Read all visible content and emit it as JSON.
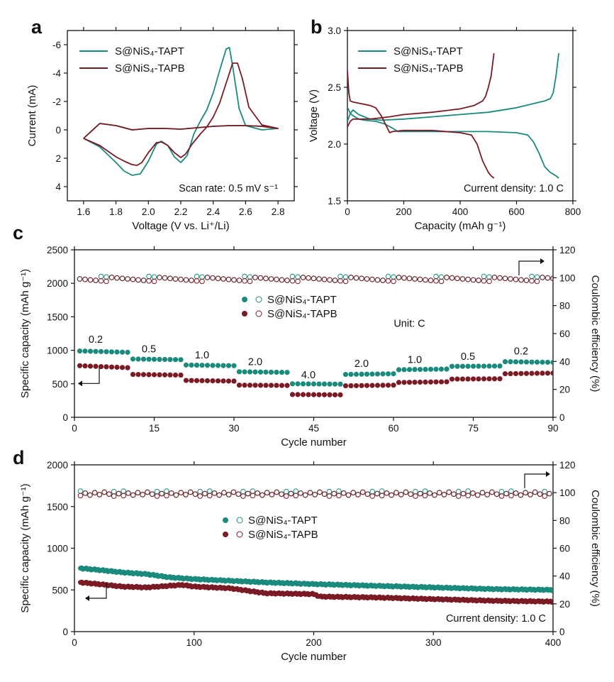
{
  "colors": {
    "tapt": "#1a8a7c",
    "tapb": "#7a1a24",
    "axis": "#111111"
  },
  "chart_data": [
    {
      "id": "a",
      "type": "line",
      "panel_label": "a",
      "xlabel": "Voltage (V vs. Li⁺/Li)",
      "ylabel": "Current (mA)",
      "xlim": [
        1.5,
        2.9
      ],
      "ylim": [
        5,
        -7
      ],
      "y_inverted": true,
      "xticks": [
        1.6,
        1.8,
        2.0,
        2.2,
        2.4,
        2.6,
        2.8
      ],
      "xtick_labels": [
        "1.6",
        "1.8",
        "2.0",
        "2.2",
        "2.4",
        "2.6",
        "2.8"
      ],
      "yticks": [
        -6,
        -4,
        -2,
        0,
        2,
        4
      ],
      "ytick_labels": [
        "-6",
        "-4",
        "-2",
        "0",
        "2",
        "4"
      ],
      "annotation": "Scan rate: 0.5 mV s⁻¹",
      "legend_position": "top-left",
      "series": [
        {
          "name": "S@NiS₄-TAPT",
          "color_key": "tapt",
          "x": [
            1.6,
            1.7,
            1.8,
            1.85,
            1.9,
            1.95,
            2.0,
            2.05,
            2.08,
            2.12,
            2.16,
            2.2,
            2.24,
            2.28,
            2.32,
            2.36,
            2.4,
            2.44,
            2.48,
            2.5,
            2.52,
            2.56,
            2.6,
            2.7,
            2.8,
            2.7,
            2.6,
            2.5,
            2.4,
            2.3,
            2.2,
            2.1,
            2.0,
            1.9,
            1.8,
            1.7,
            1.6
          ],
          "y": [
            0.6,
            1.2,
            2.3,
            2.9,
            3.2,
            3.1,
            2.2,
            1.0,
            0.8,
            1.1,
            1.9,
            2.3,
            1.8,
            0.3,
            -0.6,
            -1.4,
            -2.6,
            -4.2,
            -5.7,
            -5.8,
            -4.5,
            -1.5,
            -0.3,
            0.0,
            -0.1,
            -0.25,
            -0.3,
            -0.3,
            -0.25,
            -0.15,
            -0.05,
            -0.1,
            -0.1,
            0.0,
            -0.3,
            -0.45,
            0.6
          ]
        },
        {
          "name": "S@NiS₄-TAPB",
          "color_key": "tapb",
          "x": [
            1.6,
            1.7,
            1.8,
            1.85,
            1.9,
            1.93,
            1.96,
            2.0,
            2.05,
            2.08,
            2.12,
            2.16,
            2.2,
            2.23,
            2.27,
            2.32,
            2.36,
            2.4,
            2.44,
            2.48,
            2.52,
            2.55,
            2.58,
            2.62,
            2.7,
            2.8,
            2.7,
            2.6,
            2.5,
            2.4,
            2.3,
            2.2,
            2.1,
            2.0,
            1.9,
            1.8,
            1.7,
            1.6
          ],
          "y": [
            0.6,
            1.1,
            1.9,
            2.2,
            2.45,
            2.5,
            2.3,
            1.6,
            0.9,
            0.85,
            1.1,
            1.6,
            1.95,
            1.7,
            1.0,
            0.3,
            -0.2,
            -0.9,
            -1.9,
            -3.3,
            -4.7,
            -4.7,
            -3.6,
            -1.6,
            -0.35,
            -0.1,
            -0.25,
            -0.3,
            -0.3,
            -0.25,
            -0.15,
            -0.05,
            -0.1,
            -0.1,
            0.0,
            -0.3,
            -0.45,
            0.6
          ]
        }
      ]
    },
    {
      "id": "b",
      "type": "line",
      "panel_label": "b",
      "xlabel": "Capacity (mAh g⁻¹)",
      "ylabel": "Voltage (V)",
      "xlim": [
        0,
        800
      ],
      "ylim": [
        1.5,
        3.0
      ],
      "xticks": [
        0,
        200,
        400,
        600,
        800
      ],
      "xtick_labels": [
        "0",
        "200",
        "400",
        "600",
        "800"
      ],
      "yticks": [
        1.5,
        2.0,
        2.5,
        3.0
      ],
      "ytick_labels": [
        "1.5",
        "2.0",
        "2.5",
        "3.0"
      ],
      "annotation": "Current density: 1.0 C",
      "legend_position": "top-left",
      "series": [
        {
          "name": "S@NiS₄-TAPT",
          "color_key": "tapt",
          "segment": "discharge",
          "x": [
            0,
            5,
            10,
            20,
            40,
            60,
            100,
            130,
            160,
            180,
            200,
            300,
            400,
            500,
            600,
            640,
            660,
            680,
            700,
            720,
            740,
            750
          ],
          "y": [
            2.32,
            2.3,
            2.27,
            2.25,
            2.22,
            2.21,
            2.2,
            2.18,
            2.14,
            2.11,
            2.11,
            2.11,
            2.11,
            2.11,
            2.1,
            2.08,
            2.02,
            1.92,
            1.8,
            1.75,
            1.72,
            1.7
          ]
        },
        {
          "name": "S@NiS₄-TAPT",
          "color_key": "tapt",
          "segment": "charge",
          "x": [
            0,
            10,
            20,
            40,
            80,
            120,
            200,
            300,
            400,
            500,
            600,
            650,
            700,
            720,
            730,
            740,
            745,
            750
          ],
          "y": [
            2.2,
            2.27,
            2.3,
            2.26,
            2.22,
            2.21,
            2.22,
            2.24,
            2.26,
            2.28,
            2.32,
            2.35,
            2.38,
            2.4,
            2.45,
            2.6,
            2.7,
            2.8
          ]
        },
        {
          "name": "S@NiS₄-TAPB",
          "color_key": "tapb",
          "segment": "discharge",
          "x": [
            0,
            5,
            10,
            20,
            40,
            80,
            100,
            120,
            140,
            150,
            160,
            200,
            300,
            400,
            440,
            460,
            480,
            500,
            510,
            520
          ],
          "y": [
            2.65,
            2.45,
            2.38,
            2.37,
            2.36,
            2.34,
            2.32,
            2.25,
            2.15,
            2.1,
            2.11,
            2.12,
            2.12,
            2.1,
            2.08,
            2.0,
            1.85,
            1.75,
            1.72,
            1.7
          ]
        },
        {
          "name": "S@NiS₄-TAPB",
          "color_key": "tapb",
          "segment": "charge",
          "x": [
            0,
            10,
            20,
            40,
            80,
            150,
            200,
            300,
            400,
            450,
            480,
            490,
            500,
            510,
            515,
            520
          ],
          "y": [
            2.15,
            2.2,
            2.22,
            2.22,
            2.22,
            2.24,
            2.26,
            2.28,
            2.31,
            2.34,
            2.38,
            2.42,
            2.5,
            2.6,
            2.7,
            2.8
          ]
        }
      ]
    },
    {
      "id": "c",
      "type": "scatter",
      "panel_label": "c",
      "xlabel": "Cycle number",
      "ylabel": "Specific capacity (mAh g⁻¹)",
      "y2label": "Coulombic efficiency (%)",
      "xlim": [
        0,
        90
      ],
      "ylim": [
        0,
        2500
      ],
      "y2lim": [
        0,
        120
      ],
      "xticks": [
        0,
        15,
        30,
        45,
        60,
        75,
        90
      ],
      "xtick_labels": [
        "0",
        "15",
        "30",
        "45",
        "60",
        "75",
        "90"
      ],
      "yticks": [
        0,
        500,
        1000,
        1500,
        2000,
        2500
      ],
      "ytick_labels": [
        "0",
        "500",
        "1000",
        "1500",
        "2000",
        "2500"
      ],
      "y2ticks": [
        0,
        20,
        40,
        60,
        80,
        100,
        120
      ],
      "y2tick_labels": [
        "0",
        "20",
        "40",
        "60",
        "80",
        "100",
        "120"
      ],
      "unit_note": "Unit: C",
      "legend_position": "center",
      "rate_labels": [
        {
          "text": "0.2",
          "x": 4,
          "y": 1110
        },
        {
          "text": "0.5",
          "x": 14,
          "y": 970
        },
        {
          "text": "1.0",
          "x": 24,
          "y": 880
        },
        {
          "text": "2.0",
          "x": 34,
          "y": 780
        },
        {
          "text": "4.0",
          "x": 44,
          "y": 580
        },
        {
          "text": "2.0",
          "x": 54,
          "y": 750
        },
        {
          "text": "1.0",
          "x": 64,
          "y": 810
        },
        {
          "text": "0.5",
          "x": 74,
          "y": 860
        },
        {
          "text": "0.2",
          "x": 84,
          "y": 940
        }
      ],
      "series": [
        {
          "name": "S@NiS₄-TAPT",
          "color_key": "tapt",
          "axis": "left",
          "marker": "filled",
          "segments": [
            {
              "from": 1,
              "to": 10,
              "start": 990,
              "end": 970
            },
            {
              "from": 11,
              "to": 20,
              "start": 870,
              "end": 860
            },
            {
              "from": 21,
              "to": 30,
              "start": 780,
              "end": 770
            },
            {
              "from": 31,
              "to": 40,
              "start": 680,
              "end": 670
            },
            {
              "from": 41,
              "to": 50,
              "start": 500,
              "end": 495
            },
            {
              "from": 51,
              "to": 60,
              "start": 640,
              "end": 650
            },
            {
              "from": 61,
              "to": 70,
              "start": 710,
              "end": 720
            },
            {
              "from": 71,
              "to": 80,
              "start": 760,
              "end": 765
            },
            {
              "from": 81,
              "to": 90,
              "start": 830,
              "end": 820
            }
          ]
        },
        {
          "name": "S@NiS₄-TAPB",
          "color_key": "tapb",
          "axis": "left",
          "marker": "filled",
          "segments": [
            {
              "from": 1,
              "to": 10,
              "start": 770,
              "end": 740
            },
            {
              "from": 11,
              "to": 20,
              "start": 640,
              "end": 630
            },
            {
              "from": 21,
              "to": 30,
              "start": 550,
              "end": 540
            },
            {
              "from": 31,
              "to": 40,
              "start": 480,
              "end": 475
            },
            {
              "from": 41,
              "to": 50,
              "start": 340,
              "end": 335
            },
            {
              "from": 51,
              "to": 60,
              "start": 470,
              "end": 480
            },
            {
              "from": 61,
              "to": 70,
              "start": 520,
              "end": 530
            },
            {
              "from": 71,
              "to": 80,
              "start": 570,
              "end": 575
            },
            {
              "from": 81,
              "to": 90,
              "start": 650,
              "end": 660
            }
          ]
        },
        {
          "name": "S@NiS₄-TAPT",
          "color_key": "tapt",
          "axis": "right",
          "marker": "open",
          "level": 99.5,
          "x_range": [
            1,
            90
          ]
        },
        {
          "name": "S@NiS₄-TAPB",
          "color_key": "tapb",
          "axis": "right",
          "marker": "open",
          "level": 98.8,
          "x_range": [
            1,
            90
          ]
        }
      ]
    },
    {
      "id": "d",
      "type": "scatter",
      "panel_label": "d",
      "xlabel": "Cycle number",
      "ylabel": "Specific capacity (mAh g⁻¹)",
      "y2label": "Coulombic efficiency (%)",
      "xlim": [
        0,
        400
      ],
      "ylim": [
        0,
        2000
      ],
      "y2lim": [
        0,
        120
      ],
      "xticks": [
        0,
        100,
        200,
        300,
        400
      ],
      "xtick_labels": [
        "0",
        "100",
        "200",
        "300",
        "400"
      ],
      "yticks": [
        0,
        500,
        1000,
        1500,
        2000
      ],
      "ytick_labels": [
        "0",
        "500",
        "1000",
        "1500",
        "2000"
      ],
      "y2ticks": [
        0,
        20,
        40,
        60,
        80,
        100,
        120
      ],
      "y2tick_labels": [
        "0",
        "20",
        "40",
        "60",
        "80",
        "100",
        "120"
      ],
      "annotation": "Current density: 1.0 C",
      "legend_position": "center",
      "series": [
        {
          "name": "S@NiS₄-TAPT",
          "color_key": "tapt",
          "axis": "left",
          "marker": "filled",
          "x": [
            5,
            20,
            40,
            60,
            80,
            100,
            130,
            160,
            200,
            250,
            300,
            350,
            400
          ],
          "y": [
            760,
            740,
            710,
            690,
            650,
            630,
            610,
            590,
            570,
            550,
            530,
            510,
            500
          ]
        },
        {
          "name": "S@NiS₄-TAPB",
          "color_key": "tapb",
          "axis": "left",
          "marker": "filled",
          "x": [
            5,
            20,
            40,
            60,
            90,
            100,
            130,
            160,
            200,
            205,
            250,
            300,
            350,
            400
          ],
          "y": [
            590,
            570,
            540,
            530,
            560,
            540,
            520,
            460,
            450,
            420,
            410,
            390,
            370,
            360
          ]
        },
        {
          "name": "S@NiS₄-TAPT",
          "color_key": "tapt",
          "axis": "right",
          "marker": "open",
          "level": 99.7,
          "x_range": [
            5,
            400
          ]
        },
        {
          "name": "S@NiS₄-TAPB",
          "color_key": "tapb",
          "axis": "right",
          "marker": "open",
          "level": 98.9,
          "x_range": [
            5,
            400
          ]
        }
      ]
    }
  ]
}
